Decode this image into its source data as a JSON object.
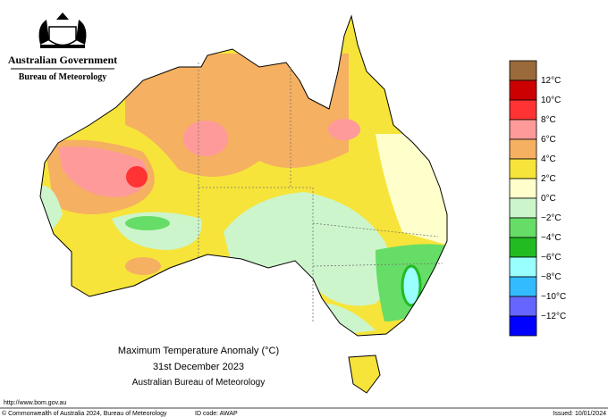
{
  "header": {
    "agency": "Australian Government",
    "bureau": "Bureau of Meteorology"
  },
  "legend": {
    "colors": [
      "#9a6a3a",
      "#cc0000",
      "#ff3333",
      "#ff9a9a",
      "#f5b062",
      "#f7e43a",
      "#ffffcc",
      "#ccf5cc",
      "#66dd66",
      "#22bb22",
      "#99ffff",
      "#33bbff",
      "#6666ff",
      "#0000ff"
    ],
    "labels": [
      "12°C",
      "10°C",
      "8°C",
      "6°C",
      "4°C",
      "2°C",
      "0°C",
      "−2°C",
      "−4°C",
      "−6°C",
      "−8°C",
      "−10°C",
      "−12°C"
    ]
  },
  "map_title": {
    "line1": "Maximum Temperature Anomaly (°C)",
    "line2": "31st December 2023",
    "line3": "Australian Bureau of Meteorology"
  },
  "footer": {
    "url": "http://www.bom.gov.au",
    "copyright": "© Commonwealth of Australia 2024, Bureau of Meteorology",
    "id_code": "ID code: AWAP",
    "issued": "Issued: 10/01/2024"
  }
}
